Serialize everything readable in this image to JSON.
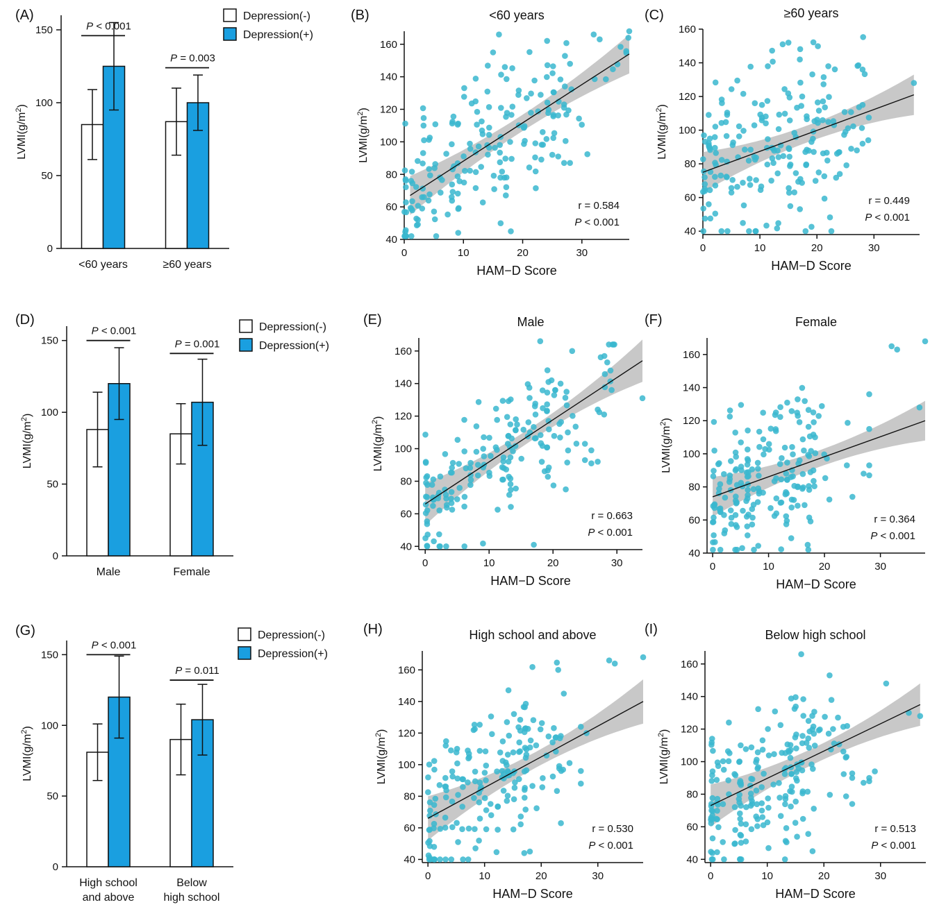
{
  "figure": {
    "ylabel_text": "LVMI(g/m",
    "ylabel_sup": "2",
    "ylabel_close": ")",
    "scatter_xlabel": "HAM−D Score",
    "legend": {
      "neg": "Depression(-)",
      "pos": "Depression(+)"
    },
    "colors": {
      "bar_pos": "#1a9fe0",
      "bar_neg": "#ffffff",
      "points": "#3ab7cf",
      "band": "#9a9a9a"
    }
  },
  "chart_data": [
    {
      "panel": "(A)",
      "type": "bar",
      "categories": [
        [
          "<60 years"
        ],
        [
          "≥60 years"
        ]
      ],
      "series": [
        {
          "name": "Depression(-)",
          "values": [
            85,
            87
          ],
          "sd": [
            24,
            23
          ]
        },
        {
          "name": "Depression(+)",
          "values": [
            125,
            100
          ],
          "sd": [
            30,
            19
          ]
        }
      ],
      "ylim": [
        0,
        160
      ],
      "yticks": [
        0,
        50,
        100,
        150
      ],
      "sig_labels": [
        "< 0.001",
        "= 0.003"
      ],
      "sig_y": [
        146,
        124
      ]
    },
    {
      "panel": "(B)",
      "type": "scatter",
      "title": "<60 years",
      "xlim": [
        0,
        38
      ],
      "xticks": [
        0,
        10,
        20,
        30
      ],
      "ylim": [
        40,
        168
      ],
      "yticks": [
        40,
        60,
        80,
        100,
        120,
        140,
        160
      ],
      "r": "r = 0.584",
      "p": "< 0.001",
      "fit": {
        "x0": 1,
        "y0": 67,
        "x1": 38,
        "y1": 154,
        "band0": 5,
        "band1": 12
      },
      "n_points": 190,
      "xmax_data": 38,
      "spread": 21,
      "seed": 11,
      "extra_points": [
        [
          38,
          168
        ],
        [
          32,
          166
        ],
        [
          33,
          163
        ],
        [
          16,
          166
        ],
        [
          28,
          148
        ],
        [
          15,
          155
        ],
        [
          17,
          146
        ],
        [
          27,
          123
        ],
        [
          27,
          87
        ],
        [
          28,
          87
        ],
        [
          25,
          92
        ],
        [
          26,
          91
        ],
        [
          27,
          121
        ],
        [
          18,
          45
        ]
      ]
    },
    {
      "panel": "(C)",
      "type": "scatter",
      "title": "≥60 years",
      "xlim": [
        0,
        38
      ],
      "xticks": [
        0,
        10,
        20,
        30
      ],
      "ylim": [
        38,
        160
      ],
      "yticks": [
        40,
        60,
        80,
        100,
        120,
        140,
        160
      ],
      "r": "r = 0.449",
      "p": "< 0.001",
      "fit": {
        "x0": 0,
        "y0": 75,
        "x1": 37,
        "y1": 121,
        "band0": 5,
        "band1": 12
      },
      "n_points": 190,
      "xmax_data": 30,
      "spread": 22,
      "seed": 23,
      "extra_points": [
        [
          37,
          128
        ],
        [
          28,
          136
        ],
        [
          28,
          115
        ],
        [
          28,
          92
        ],
        [
          27,
          88
        ],
        [
          29,
          94
        ],
        [
          26,
          89
        ],
        [
          25,
          99
        ],
        [
          23,
          103
        ],
        [
          22,
          138
        ],
        [
          15,
          152
        ],
        [
          14,
          151
        ],
        [
          17,
          142
        ],
        [
          18,
          40
        ],
        [
          24,
          74
        ]
      ]
    },
    {
      "panel": "(D)",
      "type": "bar",
      "categories": [
        [
          "Male"
        ],
        [
          "Female"
        ]
      ],
      "series": [
        {
          "name": "Depression(-)",
          "values": [
            88,
            85
          ],
          "sd": [
            26,
            21
          ]
        },
        {
          "name": "Depression(+)",
          "values": [
            120,
            107
          ],
          "sd": [
            25,
            30
          ]
        }
      ],
      "ylim": [
        0,
        160
      ],
      "yticks": [
        0,
        50,
        100,
        150
      ],
      "sig_labels": [
        "< 0.001",
        "= 0.001"
      ],
      "sig_y": [
        150,
        141
      ]
    },
    {
      "panel": "(E)",
      "type": "scatter",
      "title": "Male",
      "xlim": [
        -1,
        34
      ],
      "xticks": [
        0,
        10,
        20,
        30
      ],
      "ylim": [
        38,
        168
      ],
      "yticks": [
        40,
        60,
        80,
        100,
        120,
        140,
        160
      ],
      "r": "r = 0.663",
      "p": "< 0.001",
      "fit": {
        "x0": 0,
        "y0": 66,
        "x1": 34,
        "y1": 154,
        "band0": 4,
        "band1": 13
      },
      "n_points": 180,
      "xmax_data": 30,
      "spread": 20,
      "seed": 37,
      "extra_points": [
        [
          34,
          131
        ],
        [
          29,
          148
        ],
        [
          27,
          124
        ],
        [
          28,
          121
        ],
        [
          25,
          103
        ],
        [
          26,
          99
        ],
        [
          25,
          93
        ],
        [
          27,
          92
        ],
        [
          26,
          91
        ],
        [
          23,
          160
        ],
        [
          18,
          166
        ],
        [
          17,
          41
        ],
        [
          22,
          75
        ]
      ]
    },
    {
      "panel": "(F)",
      "type": "scatter",
      "title": "Female",
      "xlim": [
        -1,
        38
      ],
      "xticks": [
        0,
        10,
        20,
        30
      ],
      "ylim": [
        40,
        170
      ],
      "yticks": [
        40,
        60,
        80,
        100,
        120,
        140,
        160
      ],
      "r": "r = 0.364",
      "p": "< 0.001",
      "fit": {
        "x0": 0,
        "y0": 74,
        "x1": 38,
        "y1": 120,
        "band0": 5,
        "band1": 12
      },
      "n_points": 190,
      "xmax_data": 25,
      "spread": 22,
      "seed": 51,
      "extra_points": [
        [
          38,
          168
        ],
        [
          32,
          165
        ],
        [
          33,
          163
        ],
        [
          37,
          128
        ],
        [
          28,
          136
        ],
        [
          28,
          115
        ],
        [
          28,
          93
        ],
        [
          27,
          88
        ],
        [
          28,
          87
        ],
        [
          25,
          74
        ],
        [
          24,
          93
        ],
        [
          18,
          125
        ],
        [
          17,
          45
        ]
      ]
    },
    {
      "panel": "(G)",
      "type": "bar",
      "categories": [
        [
          "High school",
          "and above"
        ],
        [
          "Below",
          "high school"
        ]
      ],
      "series": [
        {
          "name": "Depression(-)",
          "values": [
            81,
            90
          ],
          "sd": [
            20,
            25
          ]
        },
        {
          "name": "Depression(+)",
          "values": [
            120,
            104
          ],
          "sd": [
            29,
            25
          ]
        }
      ],
      "ylim": [
        0,
        160
      ],
      "yticks": [
        0,
        50,
        100,
        150
      ],
      "sig_labels": [
        "< 0.001",
        "= 0.011"
      ],
      "sig_y": [
        150,
        132
      ]
    },
    {
      "panel": "(H)",
      "type": "scatter",
      "title": "High school and above",
      "xlim": [
        -1,
        38
      ],
      "xticks": [
        0,
        10,
        20,
        30
      ],
      "ylim": [
        38,
        172
      ],
      "yticks": [
        40,
        60,
        80,
        100,
        120,
        140,
        160
      ],
      "r": "r = 0.530",
      "p": "< 0.001",
      "fit": {
        "x0": 0,
        "y0": 66,
        "x1": 38,
        "y1": 140,
        "band0": 5,
        "band1": 14
      },
      "n_points": 180,
      "xmax_data": 24,
      "spread": 21,
      "seed": 67,
      "extra_points": [
        [
          38,
          168
        ],
        [
          32,
          166
        ],
        [
          33,
          164
        ],
        [
          23,
          160
        ],
        [
          24,
          145
        ],
        [
          27,
          124
        ],
        [
          28,
          120
        ],
        [
          27,
          96
        ],
        [
          27,
          88
        ],
        [
          25,
          101
        ],
        [
          17,
          44
        ],
        [
          18,
          45
        ]
      ]
    },
    {
      "panel": "(I)",
      "type": "scatter",
      "title": "Below high school",
      "xlim": [
        -1,
        38
      ],
      "xticks": [
        0,
        10,
        20,
        30
      ],
      "ylim": [
        38,
        168
      ],
      "yticks": [
        40,
        60,
        80,
        100,
        120,
        140,
        160
      ],
      "r": "r = 0.513",
      "p": "< 0.001",
      "fit": {
        "x0": 0,
        "y0": 73,
        "x1": 37,
        "y1": 135,
        "band0": 5,
        "band1": 13
      },
      "n_points": 200,
      "xmax_data": 25,
      "spread": 22,
      "seed": 79,
      "extra_points": [
        [
          37,
          128
        ],
        [
          35,
          130
        ],
        [
          31,
          148
        ],
        [
          28,
          90
        ],
        [
          29,
          94
        ],
        [
          27,
          87
        ],
        [
          28,
          88
        ],
        [
          25,
          90
        ],
        [
          24,
          103
        ],
        [
          25,
          74
        ],
        [
          21,
          153
        ],
        [
          16,
          166
        ],
        [
          18,
          45
        ]
      ]
    }
  ]
}
